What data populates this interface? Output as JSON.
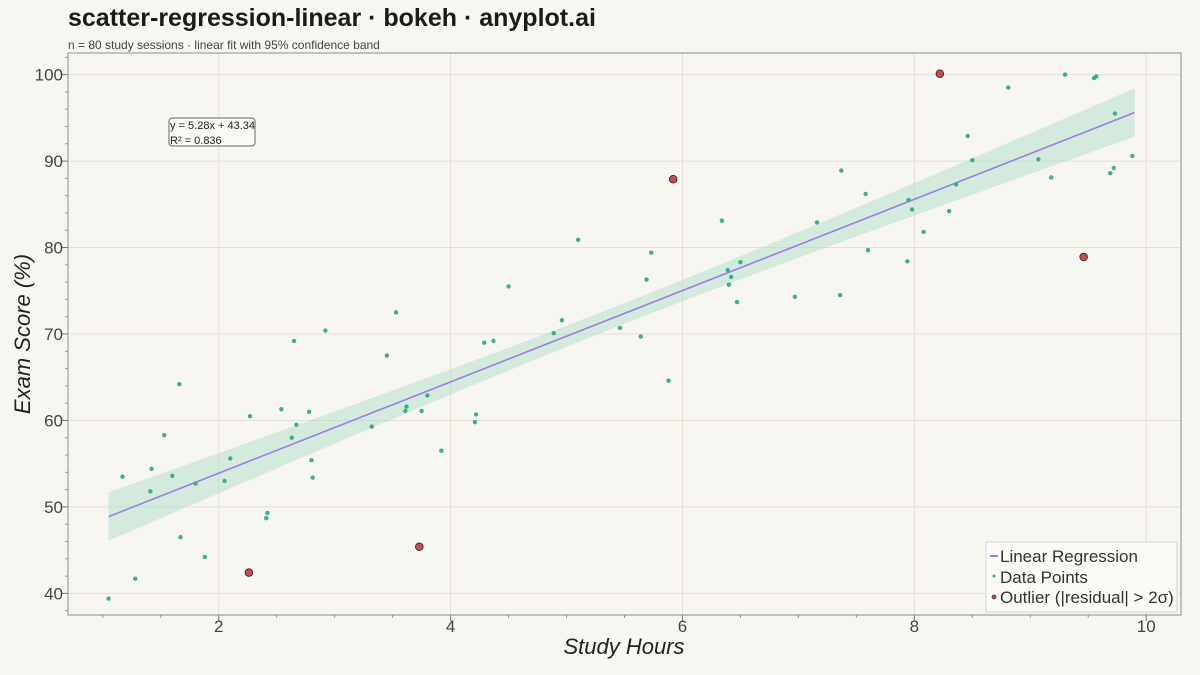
{
  "chart_data": {
    "type": "scatter",
    "title": "scatter-regression-linear · bokeh · anyplot.ai",
    "subtitle": "n = 80 study sessions · linear fit with 95% confidence band",
    "xlabel": "Study Hours",
    "ylabel": "Exam Score (%)",
    "xlim": [
      0.7,
      10.3
    ],
    "ylim": [
      37.5,
      102.5
    ],
    "xticks": [
      2,
      4,
      6,
      8,
      10
    ],
    "yticks": [
      40,
      50,
      60,
      70,
      80,
      90,
      100
    ],
    "grid": true,
    "legend_position": "bottom-right",
    "annotation": [
      "y = 5.28x + 43.34",
      "R² = 0.836"
    ],
    "regression": {
      "name": "Linear Regression",
      "slope": 5.28,
      "intercept": 43.34,
      "x_range": [
        1.05,
        9.9
      ],
      "band_half_width_at_ends": 2.8,
      "band_half_width_at_center": 1.2,
      "color": "#9b7fe0",
      "band_color": "#a9dcc5"
    },
    "series": [
      {
        "name": "Data Points",
        "color": "#3bb08f",
        "points": [
          [
            1.05,
            39.4
          ],
          [
            1.17,
            53.5
          ],
          [
            1.28,
            41.7
          ],
          [
            1.41,
            51.8
          ],
          [
            1.42,
            54.4
          ],
          [
            1.53,
            58.3
          ],
          [
            1.6,
            53.6
          ],
          [
            1.66,
            64.2
          ],
          [
            1.67,
            46.5
          ],
          [
            1.8,
            52.7
          ],
          [
            1.88,
            44.2
          ],
          [
            2.05,
            53.0
          ],
          [
            2.1,
            55.6
          ],
          [
            2.27,
            60.5
          ],
          [
            2.41,
            48.7
          ],
          [
            2.42,
            49.3
          ],
          [
            2.54,
            61.3
          ],
          [
            2.63,
            58.0
          ],
          [
            2.65,
            69.2
          ],
          [
            2.67,
            59.5
          ],
          [
            2.78,
            61.0
          ],
          [
            2.8,
            55.4
          ],
          [
            2.81,
            53.4
          ],
          [
            2.92,
            70.4
          ],
          [
            3.32,
            59.3
          ],
          [
            3.45,
            67.5
          ],
          [
            3.53,
            72.5
          ],
          [
            3.61,
            61.1
          ],
          [
            3.62,
            61.6
          ],
          [
            3.75,
            61.1
          ],
          [
            3.8,
            62.9
          ],
          [
            3.92,
            56.5
          ],
          [
            4.21,
            59.8
          ],
          [
            4.22,
            60.7
          ],
          [
            4.29,
            69.0
          ],
          [
            4.37,
            69.2
          ],
          [
            4.5,
            75.5
          ],
          [
            4.89,
            70.1
          ],
          [
            4.96,
            71.6
          ],
          [
            5.1,
            80.9
          ],
          [
            5.46,
            70.7
          ],
          [
            5.64,
            69.7
          ],
          [
            5.69,
            76.3
          ],
          [
            5.73,
            79.4
          ],
          [
            5.88,
            64.6
          ],
          [
            6.34,
            83.1
          ],
          [
            6.39,
            77.4
          ],
          [
            6.4,
            75.7
          ],
          [
            6.42,
            76.6
          ],
          [
            6.47,
            73.7
          ],
          [
            6.5,
            78.3
          ],
          [
            6.97,
            74.3
          ],
          [
            7.16,
            82.9
          ],
          [
            7.36,
            74.5
          ],
          [
            7.37,
            88.9
          ],
          [
            7.58,
            86.2
          ],
          [
            7.6,
            79.7
          ],
          [
            7.94,
            78.4
          ],
          [
            7.95,
            85.5
          ],
          [
            7.98,
            84.4
          ],
          [
            8.08,
            81.8
          ],
          [
            8.3,
            84.2
          ],
          [
            8.36,
            87.3
          ],
          [
            8.46,
            92.9
          ],
          [
            8.5,
            90.1
          ],
          [
            8.81,
            98.5
          ],
          [
            9.07,
            90.2
          ],
          [
            9.18,
            88.1
          ],
          [
            9.3,
            100.0
          ],
          [
            9.55,
            99.6
          ],
          [
            9.57,
            99.8
          ],
          [
            9.69,
            88.6
          ],
          [
            9.72,
            89.2
          ],
          [
            9.73,
            95.5
          ],
          [
            9.88,
            90.6
          ]
        ]
      },
      {
        "name": "Outlier (|residual| > 2σ)",
        "color": "#c84b4b",
        "points": [
          [
            2.26,
            42.4
          ],
          [
            3.73,
            45.4
          ],
          [
            5.92,
            87.9
          ],
          [
            8.22,
            100.1
          ],
          [
            9.46,
            78.9
          ]
        ]
      }
    ]
  }
}
